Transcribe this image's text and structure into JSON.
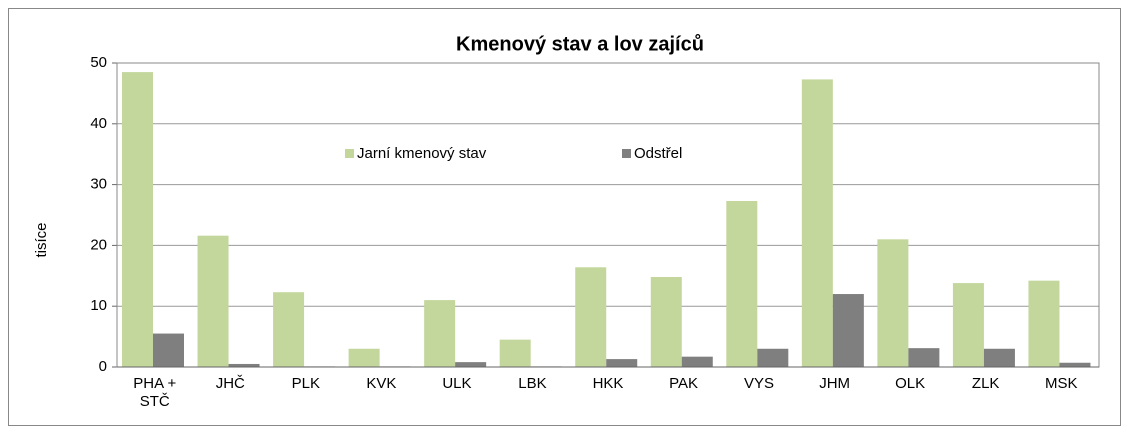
{
  "chart_data": {
    "type": "bar",
    "title": "Kmenový stav a lov zajíců",
    "y_label": "tisíce",
    "categories": [
      "PHA + STČ",
      "JHČ",
      "PLK",
      "KVK",
      "ULK",
      "LBK",
      "HKK",
      "PAK",
      "VYS",
      "JHM",
      "OLK",
      "ZLK",
      "MSK"
    ],
    "series": [
      {
        "name": "Jarní kmenový stav",
        "color": "#c3d69b",
        "values": [
          48.5,
          21.6,
          12.3,
          3.0,
          11.0,
          4.5,
          16.4,
          14.8,
          27.3,
          47.3,
          21.0,
          13.8,
          14.2
        ]
      },
      {
        "name": "Odstřel",
        "color": "#7f7f7f",
        "values": [
          5.5,
          0.5,
          0.1,
          0.1,
          0.8,
          0.1,
          1.3,
          1.7,
          3.0,
          12.0,
          3.1,
          3.0,
          0.7
        ]
      }
    ],
    "ylim": [
      0,
      50
    ],
    "yticks": [
      0,
      10,
      20,
      30,
      40,
      50
    ],
    "grid": true
  }
}
